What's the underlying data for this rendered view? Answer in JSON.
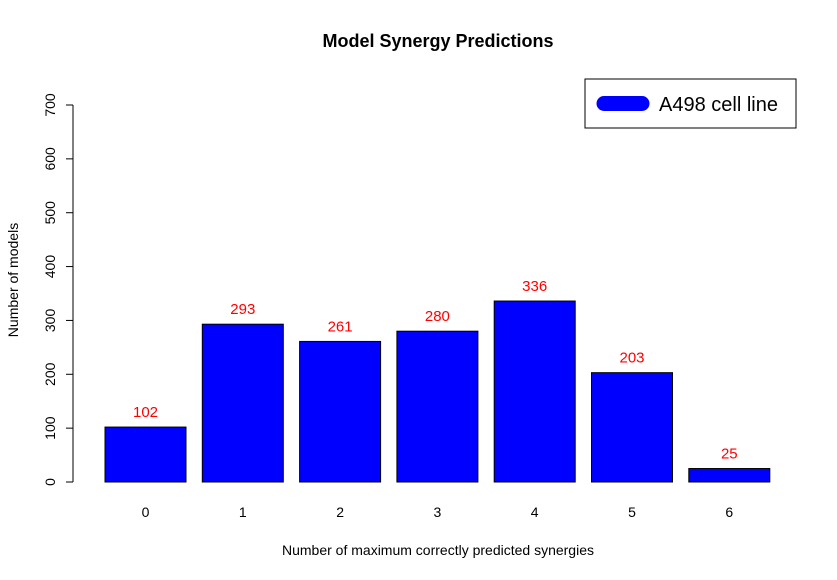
{
  "chart_data": {
    "type": "bar",
    "title": "Model Synergy Predictions",
    "xlabel": "Number of maximum correctly predicted synergies",
    "ylabel": "Number of models",
    "categories": [
      "0",
      "1",
      "2",
      "3",
      "4",
      "5",
      "6"
    ],
    "series": [
      {
        "name": "A498 cell line",
        "values": [
          102,
          293,
          261,
          280,
          336,
          203,
          25
        ]
      }
    ],
    "data_labels": [
      "102",
      "293",
      "261",
      "280",
      "336",
      "203",
      "25"
    ],
    "ylim": [
      0,
      700
    ],
    "yticks": [
      "0",
      "100",
      "200",
      "300",
      "400",
      "500",
      "600",
      "700"
    ],
    "grid": false,
    "legend_position": "top-right"
  },
  "colors": {
    "bar_fill": "#0000ff",
    "bar_stroke": "#000000",
    "data_label": "#ff0000",
    "axis": "#000000"
  }
}
